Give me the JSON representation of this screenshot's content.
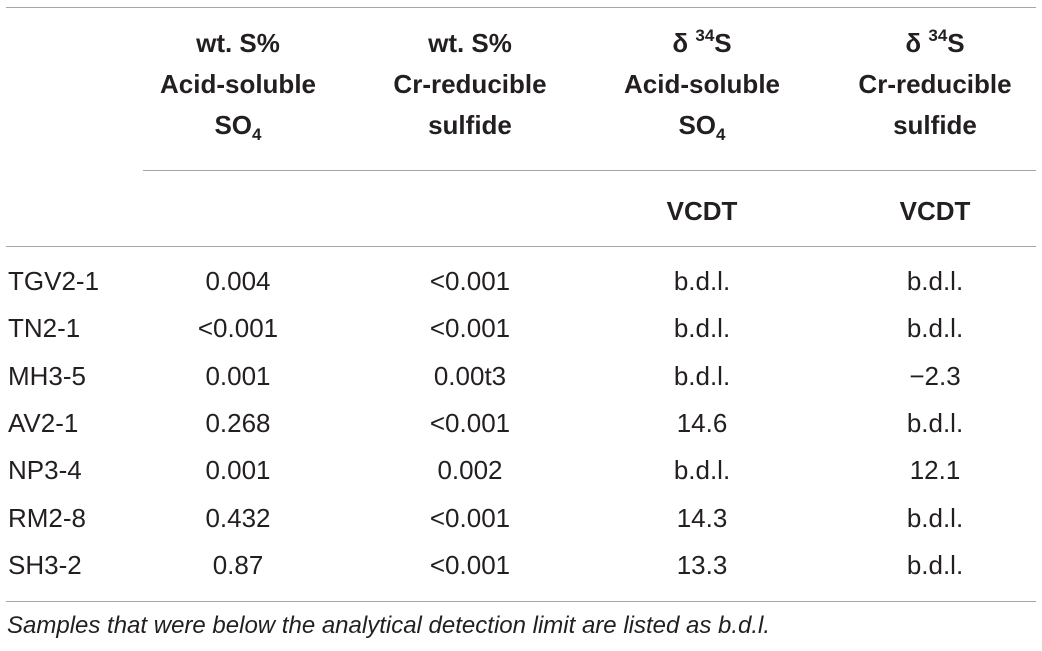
{
  "table": {
    "columns": [
      {
        "line1": "wt. S%",
        "line2": "Acid-soluble",
        "line3_main": "SO",
        "line3_sub": "4",
        "unit": ""
      },
      {
        "line1": "wt. S%",
        "line2": "Cr-reducible",
        "line3_main": "sulfide",
        "line3_sub": "",
        "unit": ""
      },
      {
        "line1_pre": "δ ",
        "line1_sup": "34",
        "line1_post": "S",
        "line2": "Acid-soluble",
        "line3_main": "SO",
        "line3_sub": "4",
        "unit": "VCDT"
      },
      {
        "line1_pre": "δ ",
        "line1_sup": "34",
        "line1_post": "S",
        "line2": "Cr-reducible",
        "line3_main": "sulfide",
        "line3_sub": "",
        "unit": "VCDT"
      }
    ],
    "rows": [
      {
        "id": "TGV2-1",
        "wt_so4": "0.004",
        "wt_sulfide": "<0.001",
        "d34s_so4": "b.d.l.",
        "d34s_sulfide": "b.d.l."
      },
      {
        "id": "TN2-1",
        "wt_so4": "<0.001",
        "wt_sulfide": "<0.001",
        "d34s_so4": "b.d.l.",
        "d34s_sulfide": "b.d.l."
      },
      {
        "id": "MH3-5",
        "wt_so4": "0.001",
        "wt_sulfide": "0.00t3",
        "d34s_so4": "b.d.l.",
        "d34s_sulfide": "−2.3"
      },
      {
        "id": "AV2-1",
        "wt_so4": "0.268",
        "wt_sulfide": "<0.001",
        "d34s_so4": "14.6",
        "d34s_sulfide": "b.d.l."
      },
      {
        "id": "NP3-4",
        "wt_so4": "0.001",
        "wt_sulfide": "0.002",
        "d34s_so4": "b.d.l.",
        "d34s_sulfide": "12.1"
      },
      {
        "id": "RM2-8",
        "wt_so4": "0.432",
        "wt_sulfide": "<0.001",
        "d34s_so4": "14.3",
        "d34s_sulfide": "b.d.l."
      },
      {
        "id": "SH3-2",
        "wt_so4": "0.87",
        "wt_sulfide": "<0.001",
        "d34s_so4": "13.3",
        "d34s_sulfide": "b.d.l."
      }
    ]
  },
  "footnote": "Samples that were below the analytical detection limit are listed as b.d.l."
}
